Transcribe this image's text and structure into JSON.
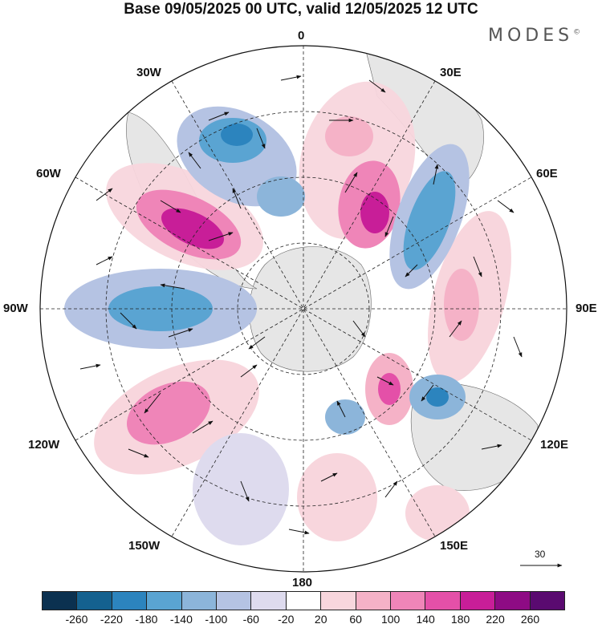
{
  "title": "Base 09/05/2025 00 UTC, valid 12/05/2025 12 UTC",
  "brand": "MODES",
  "brand_mark": "©",
  "longitude_labels": {
    "lon_0": "0",
    "lon_30e": "30E",
    "lon_60e": "60E",
    "lon_90e": "90E",
    "lon_120e": "120E",
    "lon_150e": "150E",
    "lon_180": "180",
    "lon_150w": "150W",
    "lon_120w": "120W",
    "lon_90w": "90W",
    "lon_60w": "60W",
    "lon_30w": "30W"
  },
  "reference_vector": "30",
  "colorbar": {
    "colors": [
      "#0b3150",
      "#14618f",
      "#2c84be",
      "#5aa4d2",
      "#8cb5da",
      "#b5c3e3",
      "#dedbee",
      "#ffffff",
      "#f8d6dd",
      "#f5b2c7",
      "#ef85b8",
      "#e450a8",
      "#c81e98",
      "#8e0b84",
      "#5a0a70"
    ],
    "ticks": [
      "-260",
      "-220",
      "-180",
      "-140",
      "-100",
      "-60",
      "-20",
      "20",
      "60",
      "100",
      "140",
      "180",
      "220",
      "260"
    ]
  }
}
